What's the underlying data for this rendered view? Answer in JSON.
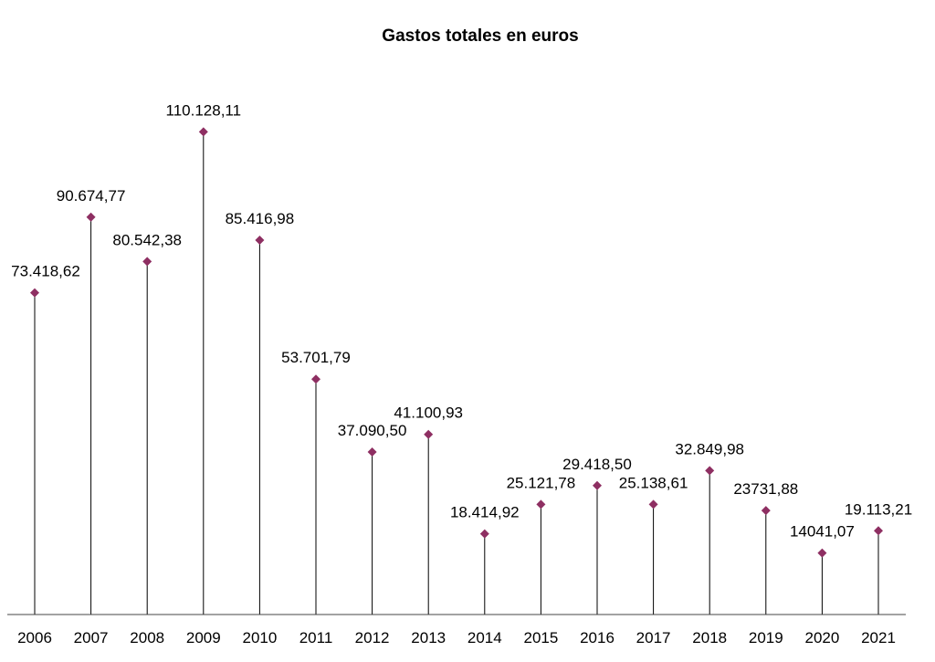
{
  "chart_data": {
    "type": "line",
    "title": "Gastos totales en euros",
    "categories": [
      "2006",
      "2007",
      "2008",
      "2009",
      "2010",
      "2011",
      "2012",
      "2013",
      "2014",
      "2015",
      "2016",
      "2017",
      "2018",
      "2019",
      "2020",
      "2021"
    ],
    "values": [
      73418.62,
      90674.77,
      80542.38,
      110128.11,
      85416.98,
      53701.79,
      37090.5,
      41100.93,
      18414.92,
      25121.78,
      29418.5,
      25138.61,
      32849.98,
      23731.88,
      14041.07,
      19113.21
    ],
    "data_labels": [
      "73.418,62",
      "90.674,77",
      "80.542,38",
      "110.128,11",
      "85.416,98",
      "53.701,79",
      "37.090,50",
      "41.100,93",
      "18.414,92",
      "25.121,78",
      "29.418,50",
      "25.138,61",
      "32.849,98",
      "23731,88",
      "14041,07",
      "19.113,21"
    ],
    "marker_color": "#8E2F62",
    "ylim": [
      0,
      120000
    ],
    "grid": false,
    "legend": "none"
  }
}
